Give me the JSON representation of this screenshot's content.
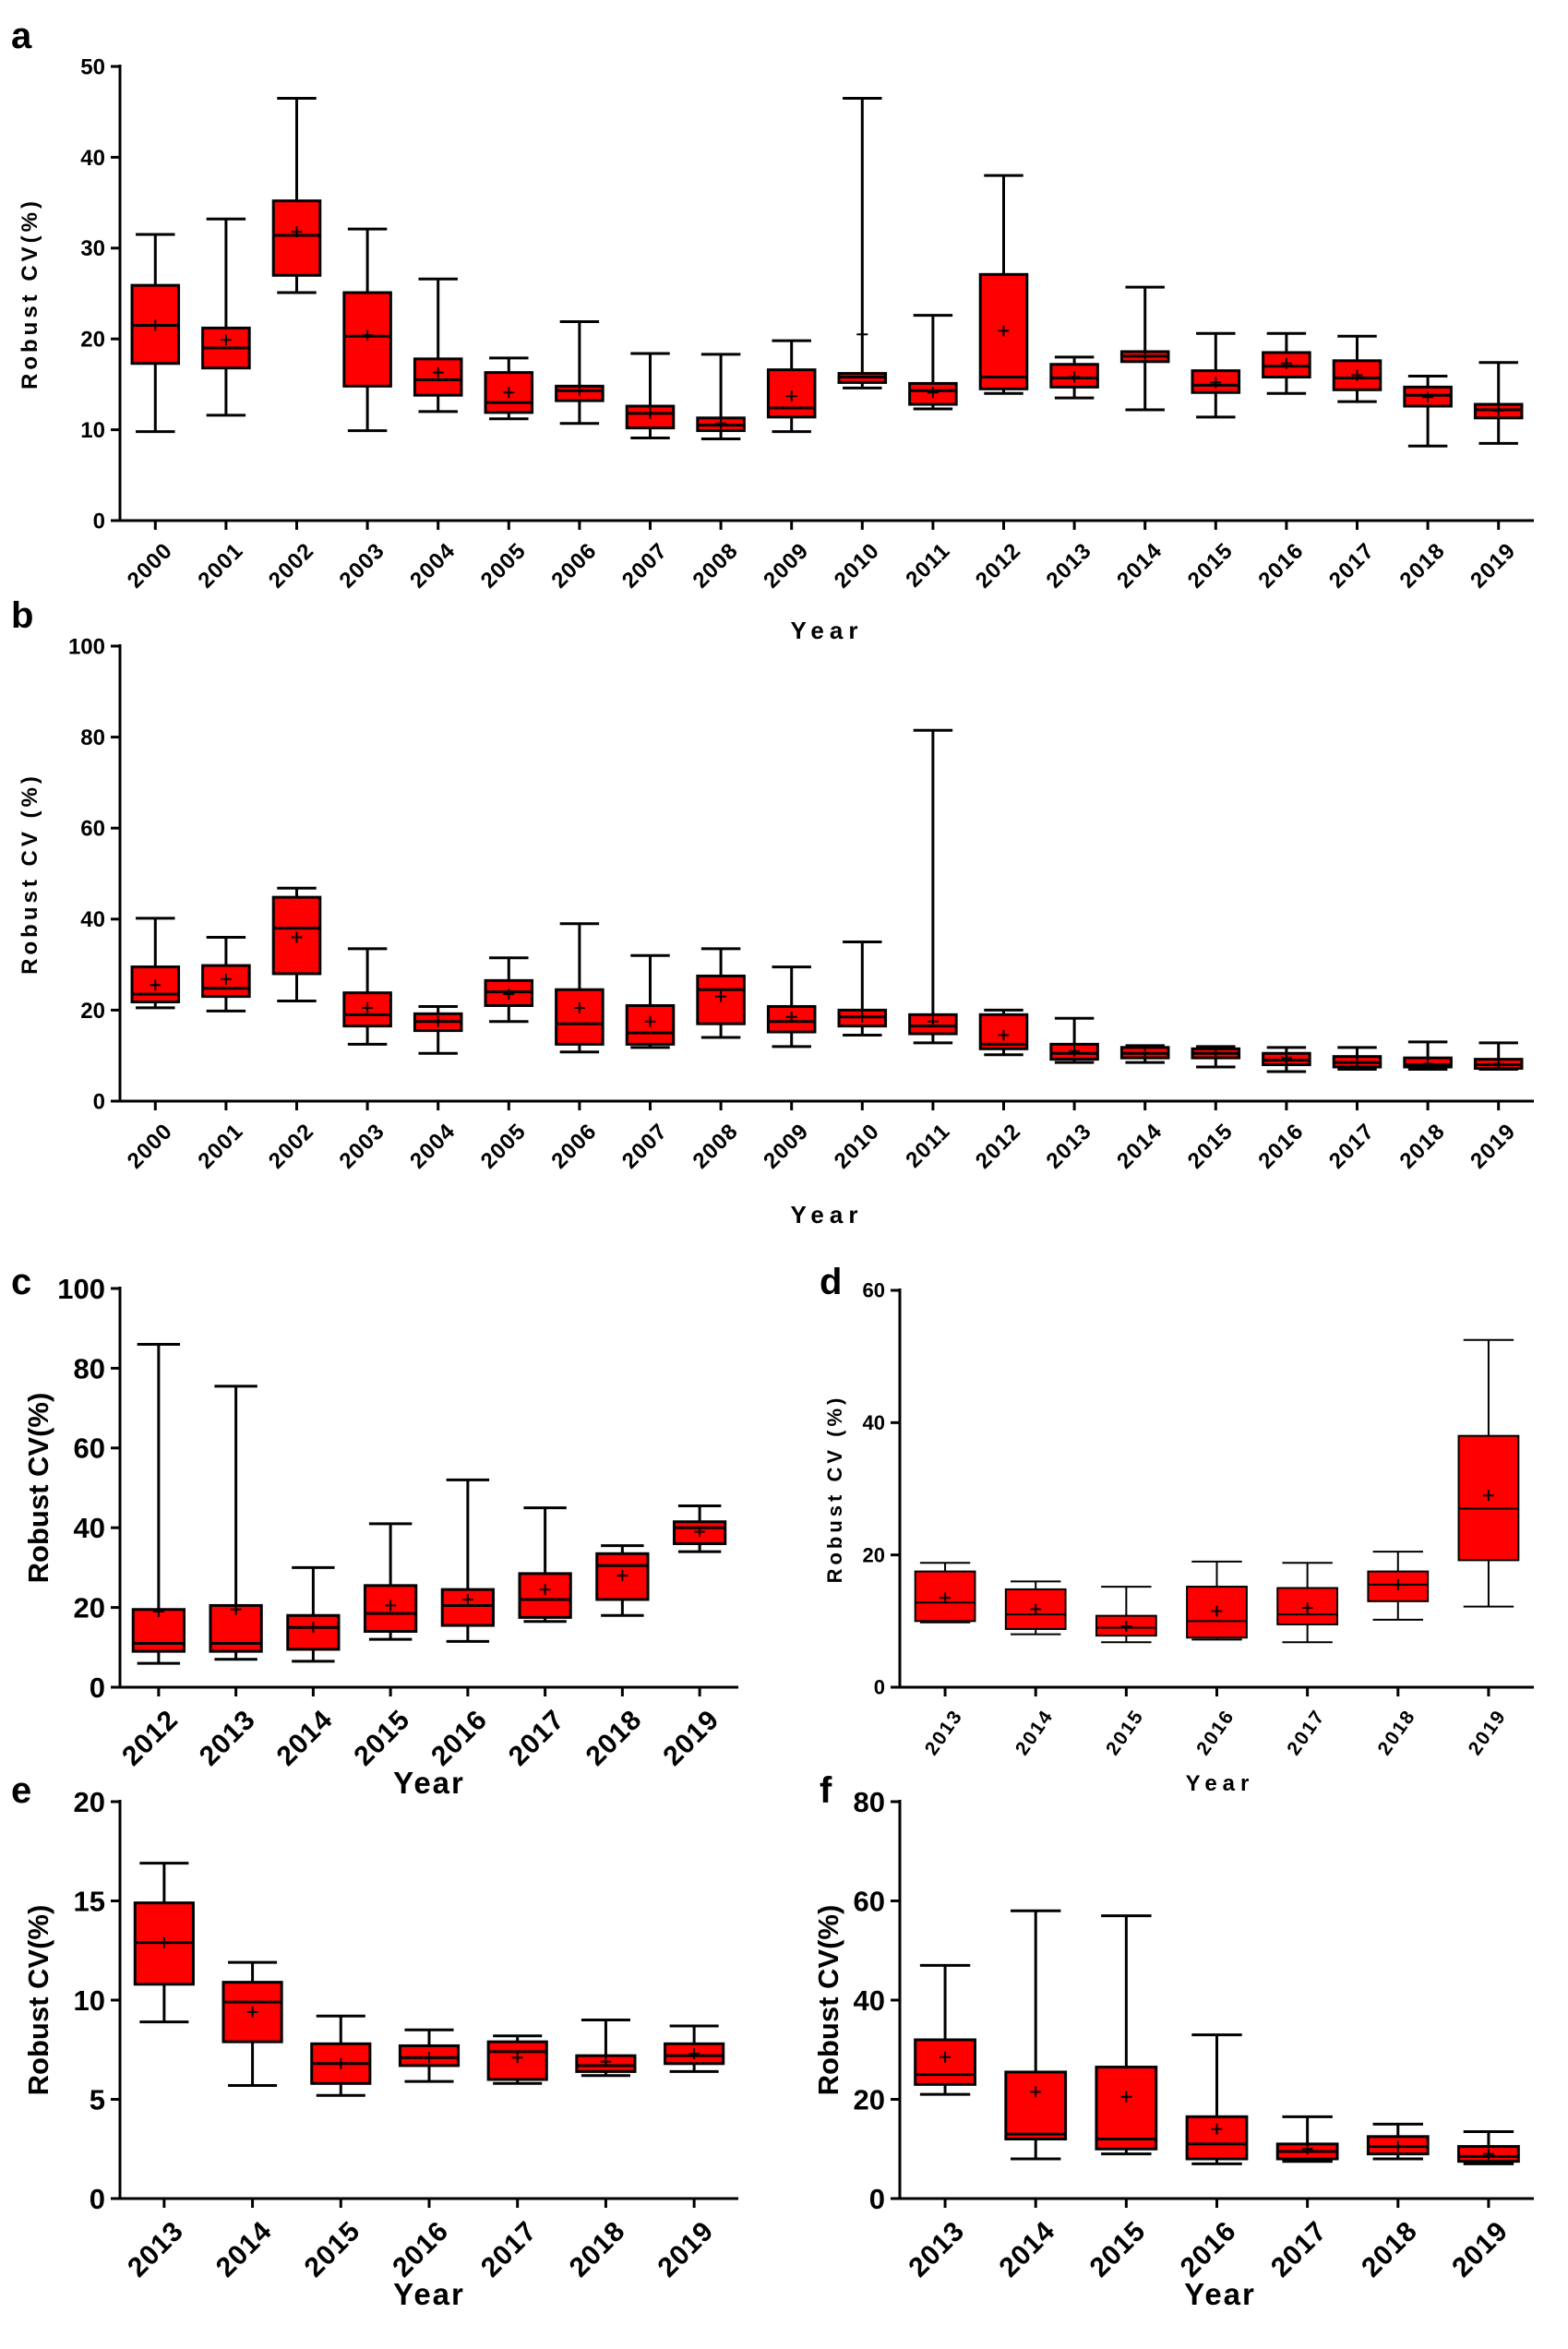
{
  "colors": {
    "box_fill": "#ff0000",
    "stroke": "#000000",
    "background": "#ffffff"
  },
  "chart_data": [
    {
      "panel": "a",
      "type": "box",
      "xlabel": "Year",
      "ylabel": "Robust CV(%)",
      "ylim": [
        0,
        50
      ],
      "yticks": [
        0,
        10,
        20,
        30,
        40,
        50
      ],
      "categories": [
        "2000",
        "2001",
        "2002",
        "2003",
        "2004",
        "2005",
        "2006",
        "2007",
        "2008",
        "2009",
        "2010",
        "2011",
        "2012",
        "2013",
        "2014",
        "2015",
        "2016",
        "2017",
        "2018",
        "2019"
      ],
      "boxes": [
        {
          "min": 9.8,
          "q1": 17.3,
          "median": 21.5,
          "q3": 25.9,
          "max": 31.5,
          "mean": 21.5
        },
        {
          "min": 11.6,
          "q1": 16.8,
          "median": 19.0,
          "q3": 21.2,
          "max": 33.2,
          "mean": 19.9
        },
        {
          "min": 25.1,
          "q1": 27.0,
          "median": 31.4,
          "q3": 35.2,
          "max": 46.5,
          "mean": 31.8
        },
        {
          "min": 9.9,
          "q1": 14.8,
          "median": 20.3,
          "q3": 25.1,
          "max": 32.1,
          "mean": 20.4
        },
        {
          "min": 12.0,
          "q1": 13.8,
          "median": 15.5,
          "q3": 17.8,
          "max": 26.6,
          "mean": 16.3
        },
        {
          "min": 11.2,
          "q1": 11.9,
          "median": 13.0,
          "q3": 16.3,
          "max": 17.9,
          "mean": 14.1
        },
        {
          "min": 10.7,
          "q1": 13.2,
          "median": 14.3,
          "q3": 14.8,
          "max": 21.9,
          "mean": 14.3
        },
        {
          "min": 9.1,
          "q1": 10.2,
          "median": 11.8,
          "q3": 12.6,
          "max": 18.4,
          "mean": 11.8
        },
        {
          "min": 9.0,
          "q1": 9.9,
          "median": 10.5,
          "q3": 11.3,
          "max": 18.3,
          "mean": 10.7
        },
        {
          "min": 9.8,
          "q1": 11.4,
          "median": 12.4,
          "q3": 16.6,
          "max": 19.8,
          "mean": 13.7
        },
        {
          "min": 14.6,
          "q1": 15.2,
          "median": 15.8,
          "q3": 16.2,
          "max": 46.5,
          "mean": 20.5
        },
        {
          "min": 12.3,
          "q1": 12.8,
          "median": 14.3,
          "q3": 15.1,
          "max": 22.6,
          "mean": 14.1
        },
        {
          "min": 14.0,
          "q1": 14.5,
          "median": 15.8,
          "q3": 27.1,
          "max": 38.0,
          "mean": 20.9
        },
        {
          "min": 13.5,
          "q1": 14.7,
          "median": 15.7,
          "q3": 17.2,
          "max": 18.0,
          "mean": 15.8
        },
        {
          "min": 12.2,
          "q1": 17.5,
          "median": 18.1,
          "q3": 18.6,
          "max": 25.7,
          "mean": 18.1
        },
        {
          "min": 11.4,
          "q1": 14.1,
          "median": 14.9,
          "q3": 16.5,
          "max": 20.6,
          "mean": 15.2
        },
        {
          "min": 14.0,
          "q1": 15.8,
          "median": 17.0,
          "q3": 18.5,
          "max": 20.6,
          "mean": 17.3
        },
        {
          "min": 13.1,
          "q1": 14.4,
          "median": 15.7,
          "q3": 17.6,
          "max": 20.3,
          "mean": 16.0
        },
        {
          "min": 8.2,
          "q1": 12.6,
          "median": 13.8,
          "q3": 14.7,
          "max": 15.9,
          "mean": 13.6
        },
        {
          "min": 8.5,
          "q1": 11.3,
          "median": 12.2,
          "q3": 12.8,
          "max": 17.4,
          "mean": 12.1
        }
      ]
    },
    {
      "panel": "b",
      "type": "box",
      "xlabel": "Year",
      "ylabel": "Robust CV (%)",
      "ylim": [
        0,
        100
      ],
      "yticks": [
        0,
        20,
        40,
        60,
        80,
        100
      ],
      "categories": [
        "2000",
        "2001",
        "2002",
        "2003",
        "2004",
        "2005",
        "2006",
        "2007",
        "2008",
        "2009",
        "2010",
        "2011",
        "2012",
        "2013",
        "2014",
        "2015",
        "2016",
        "2017",
        "2018",
        "2019"
      ],
      "boxes": [
        {
          "min": 20.5,
          "q1": 21.8,
          "median": 23.5,
          "q3": 29.5,
          "max": 40.2,
          "mean": 25.5
        },
        {
          "min": 19.8,
          "q1": 23.0,
          "median": 24.8,
          "q3": 29.8,
          "max": 36.0,
          "mean": 26.8
        },
        {
          "min": 22.0,
          "q1": 28.0,
          "median": 38.0,
          "q3": 44.8,
          "max": 46.8,
          "mean": 36.0
        },
        {
          "min": 12.5,
          "q1": 16.5,
          "median": 19.0,
          "q3": 23.8,
          "max": 33.5,
          "mean": 20.5
        },
        {
          "min": 10.5,
          "q1": 15.5,
          "median": 17.5,
          "q3": 19.2,
          "max": 20.8,
          "mean": 17.5
        },
        {
          "min": 17.5,
          "q1": 21.0,
          "median": 24.0,
          "q3": 26.5,
          "max": 31.5,
          "mean": 23.5
        },
        {
          "min": 10.8,
          "q1": 12.5,
          "median": 17.0,
          "q3": 24.5,
          "max": 39.0,
          "mean": 20.5
        },
        {
          "min": 11.8,
          "q1": 12.5,
          "median": 15.0,
          "q3": 21.0,
          "max": 32.0,
          "mean": 17.5
        },
        {
          "min": 14.0,
          "q1": 17.0,
          "median": 24.5,
          "q3": 27.5,
          "max": 33.5,
          "mean": 23.0
        },
        {
          "min": 12.0,
          "q1": 15.2,
          "median": 17.5,
          "q3": 20.8,
          "max": 29.5,
          "mean": 18.5
        },
        {
          "min": 14.5,
          "q1": 16.5,
          "median": 18.5,
          "q3": 20.0,
          "max": 35.0,
          "mean": 18.5
        },
        {
          "min": 12.8,
          "q1": 14.8,
          "median": 16.5,
          "q3": 19.0,
          "max": 81.5,
          "mean": 17.5
        },
        {
          "min": 10.2,
          "q1": 11.5,
          "median": 12.5,
          "q3": 19.0,
          "max": 20.0,
          "mean": 14.5
        },
        {
          "min": 8.5,
          "q1": 9.2,
          "median": 10.5,
          "q3": 12.5,
          "max": 18.2,
          "mean": 11.0
        },
        {
          "min": 8.5,
          "q1": 9.5,
          "median": 10.5,
          "q3": 11.8,
          "max": 12.2,
          "mean": 10.5
        },
        {
          "min": 7.5,
          "q1": 9.5,
          "median": 10.5,
          "q3": 11.5,
          "max": 12.0,
          "mean": 10.5
        },
        {
          "min": 6.5,
          "q1": 8.0,
          "median": 9.0,
          "q3": 10.5,
          "max": 11.8,
          "mean": 9.5
        },
        {
          "min": 7.0,
          "q1": 7.5,
          "median": 8.5,
          "q3": 9.8,
          "max": 11.8,
          "mean": 8.5
        },
        {
          "min": 7.0,
          "q1": 7.5,
          "median": 8.0,
          "q3": 9.5,
          "max": 13.0,
          "mean": 8.2
        },
        {
          "min": 7.0,
          "q1": 7.2,
          "median": 8.0,
          "q3": 9.2,
          "max": 12.8,
          "mean": 8.2
        }
      ]
    },
    {
      "panel": "c",
      "type": "box",
      "xlabel": "Year",
      "ylabel": "Robust CV(%)",
      "ylim": [
        0,
        100
      ],
      "yticks": [
        0,
        20,
        40,
        60,
        80,
        100
      ],
      "categories": [
        "2012",
        "2013",
        "2014",
        "2015",
        "2016",
        "2017",
        "2018",
        "2019"
      ],
      "boxes": [
        {
          "min": 6.0,
          "q1": 9.0,
          "median": 11.0,
          "q3": 19.5,
          "max": 86.0,
          "mean": 19.0
        },
        {
          "min": 7.0,
          "q1": 9.0,
          "median": 11.0,
          "q3": 20.5,
          "max": 75.5,
          "mean": 19.5
        },
        {
          "min": 6.5,
          "q1": 9.5,
          "median": 15.0,
          "q3": 18.0,
          "max": 30.0,
          "mean": 15.0
        },
        {
          "min": 12.0,
          "q1": 14.0,
          "median": 18.5,
          "q3": 25.5,
          "max": 41.0,
          "mean": 20.5
        },
        {
          "min": 11.5,
          "q1": 15.5,
          "median": 20.5,
          "q3": 24.5,
          "max": 52.0,
          "mean": 22.0
        },
        {
          "min": 16.5,
          "q1": 17.5,
          "median": 22.0,
          "q3": 28.5,
          "max": 45.0,
          "mean": 24.5
        },
        {
          "min": 18.0,
          "q1": 22.0,
          "median": 30.5,
          "q3": 33.5,
          "max": 35.5,
          "mean": 28.0
        },
        {
          "min": 34.0,
          "q1": 36.0,
          "median": 40.0,
          "q3": 41.5,
          "max": 45.5,
          "mean": 39.0
        }
      ]
    },
    {
      "panel": "d",
      "type": "box",
      "xlabel": "Year",
      "ylabel": "Robust CV (%)",
      "ylim": [
        0,
        60
      ],
      "yticks": [
        0,
        20,
        40,
        60
      ],
      "categories": [
        "2013",
        "2014",
        "2015",
        "2016",
        "2017",
        "2018",
        "2019"
      ],
      "boxes": [
        {
          "min": 9.8,
          "q1": 10.0,
          "median": 12.8,
          "q3": 17.5,
          "max": 18.8,
          "mean": 13.5
        },
        {
          "min": 8.0,
          "q1": 8.8,
          "median": 11.0,
          "q3": 14.8,
          "max": 16.0,
          "mean": 11.8
        },
        {
          "min": 6.8,
          "q1": 7.8,
          "median": 9.0,
          "q3": 10.8,
          "max": 15.2,
          "mean": 9.2
        },
        {
          "min": 7.2,
          "q1": 7.5,
          "median": 10.0,
          "q3": 15.2,
          "max": 19.0,
          "mean": 11.5
        },
        {
          "min": 6.8,
          "q1": 9.5,
          "median": 11.0,
          "q3": 15.0,
          "max": 18.8,
          "mean": 12.0
        },
        {
          "min": 10.2,
          "q1": 13.0,
          "median": 15.5,
          "q3": 17.5,
          "max": 20.5,
          "mean": 15.5
        },
        {
          "min": 12.2,
          "q1": 19.2,
          "median": 27.0,
          "q3": 38.0,
          "max": 52.5,
          "mean": 29.0
        }
      ]
    },
    {
      "panel": "e",
      "type": "box",
      "xlabel": "Year",
      "ylabel": "Robust CV(%)",
      "ylim": [
        0,
        20
      ],
      "yticks": [
        0,
        5,
        10,
        15,
        20
      ],
      "categories": [
        "2013",
        "2014",
        "2015",
        "2016",
        "2017",
        "2018",
        "2019"
      ],
      "boxes": [
        {
          "min": 8.9,
          "q1": 10.8,
          "median": 12.9,
          "q3": 14.9,
          "max": 16.9,
          "mean": 12.9
        },
        {
          "min": 5.7,
          "q1": 7.9,
          "median": 9.9,
          "q3": 10.9,
          "max": 11.9,
          "mean": 9.4
        },
        {
          "min": 5.2,
          "q1": 5.8,
          "median": 6.8,
          "q3": 7.8,
          "max": 9.2,
          "mean": 6.8
        },
        {
          "min": 5.9,
          "q1": 6.7,
          "median": 7.1,
          "q3": 7.7,
          "max": 8.5,
          "mean": 7.1
        },
        {
          "min": 5.8,
          "q1": 6.0,
          "median": 7.4,
          "q3": 7.9,
          "max": 8.2,
          "mean": 7.1
        },
        {
          "min": 6.2,
          "q1": 6.4,
          "median": 6.7,
          "q3": 7.2,
          "max": 9.0,
          "mean": 6.9
        },
        {
          "min": 6.4,
          "q1": 6.8,
          "median": 7.2,
          "q3": 7.8,
          "max": 8.7,
          "mean": 7.3
        }
      ]
    },
    {
      "panel": "f",
      "type": "box",
      "xlabel": "Year",
      "ylabel": "Robust CV(%)",
      "ylim": [
        0,
        80
      ],
      "yticks": [
        0,
        20,
        40,
        60,
        80
      ],
      "categories": [
        "2013",
        "2014",
        "2015",
        "2016",
        "2017",
        "2018",
        "2019"
      ],
      "boxes": [
        {
          "min": 21.0,
          "q1": 23.0,
          "median": 25.0,
          "q3": 32.0,
          "max": 47.0,
          "mean": 28.5
        },
        {
          "min": 8.0,
          "q1": 12.0,
          "median": 13.0,
          "q3": 25.5,
          "max": 58.0,
          "mean": 21.5
        },
        {
          "min": 9.0,
          "q1": 10.0,
          "median": 12.0,
          "q3": 26.5,
          "max": 57.0,
          "mean": 20.5
        },
        {
          "min": 7.0,
          "q1": 8.0,
          "median": 11.0,
          "q3": 16.5,
          "max": 33.0,
          "mean": 14.0
        },
        {
          "min": 7.5,
          "q1": 8.0,
          "median": 9.5,
          "q3": 11.0,
          "max": 16.5,
          "mean": 10.0
        },
        {
          "min": 8.0,
          "q1": 9.0,
          "median": 10.5,
          "q3": 12.5,
          "max": 15.0,
          "mean": 10.5
        },
        {
          "min": 7.0,
          "q1": 7.5,
          "median": 8.5,
          "q3": 10.5,
          "max": 13.5,
          "mean": 9.0
        }
      ]
    }
  ]
}
